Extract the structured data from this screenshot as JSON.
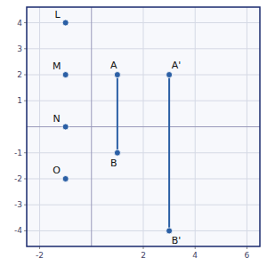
{
  "chart_data": {
    "type": "scatter",
    "xlim": [
      -2.5,
      6.5
    ],
    "ylim": [
      -4.6,
      4.6
    ],
    "xticks": [
      -2,
      2,
      4,
      6
    ],
    "yticks": [
      -4,
      -3,
      -2,
      -1,
      1,
      2,
      3,
      4
    ],
    "grid": true,
    "series": [
      {
        "type": "line",
        "color": "#2b5fa5",
        "x": [
          1,
          1
        ],
        "values": [
          2,
          -1
        ]
      },
      {
        "type": "line",
        "color": "#2b5fa5",
        "x": [
          3,
          3
        ],
        "values": [
          2,
          -4
        ]
      },
      {
        "type": "scatter",
        "color": "#2b5fa5",
        "marker": "circle",
        "x": [
          1,
          1,
          3,
          3,
          -1,
          -1,
          -1,
          -1
        ],
        "values": [
          2,
          -1,
          2,
          -4,
          4,
          2,
          0,
          -2
        ]
      }
    ],
    "annotations": [
      "A",
      "B",
      "A'",
      "B'",
      "L",
      "M",
      "N",
      "O"
    ]
  }
}
